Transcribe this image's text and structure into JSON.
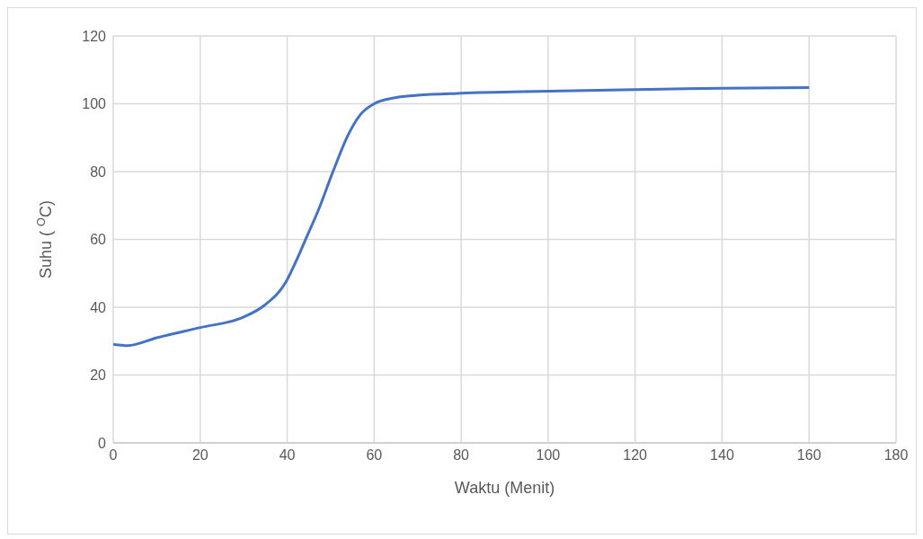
{
  "chart_data": {
    "type": "line",
    "xlabel": "Waktu (Menit)",
    "ylabel": "Suhu ( $^{O}$C)",
    "series": [
      {
        "color": "#4472c4",
        "x": [
          0,
          3.3,
          10,
          20,
          30,
          34.8,
          39.6,
          42.3,
          44.4,
          47.1,
          50.5,
          53.9,
          56.7,
          60,
          64.9,
          70,
          80,
          100,
          120,
          140,
          160
        ],
        "values": [
          29.1,
          28.7,
          31,
          34,
          37.1,
          40.6,
          47.2,
          54.3,
          60.5,
          68.4,
          79.9,
          90.5,
          96.6,
          100,
          101.8,
          102.5,
          103.1,
          103.7,
          104.2,
          104.6,
          104.8
        ]
      }
    ],
    "xlim": [
      0,
      180
    ],
    "xticks": [
      0,
      20,
      40,
      60,
      80,
      100,
      120,
      140,
      160,
      180
    ],
    "ylim": [
      0,
      120
    ],
    "yticks": [
      0,
      20,
      40,
      60,
      80,
      100,
      120
    ],
    "grid": true
  }
}
